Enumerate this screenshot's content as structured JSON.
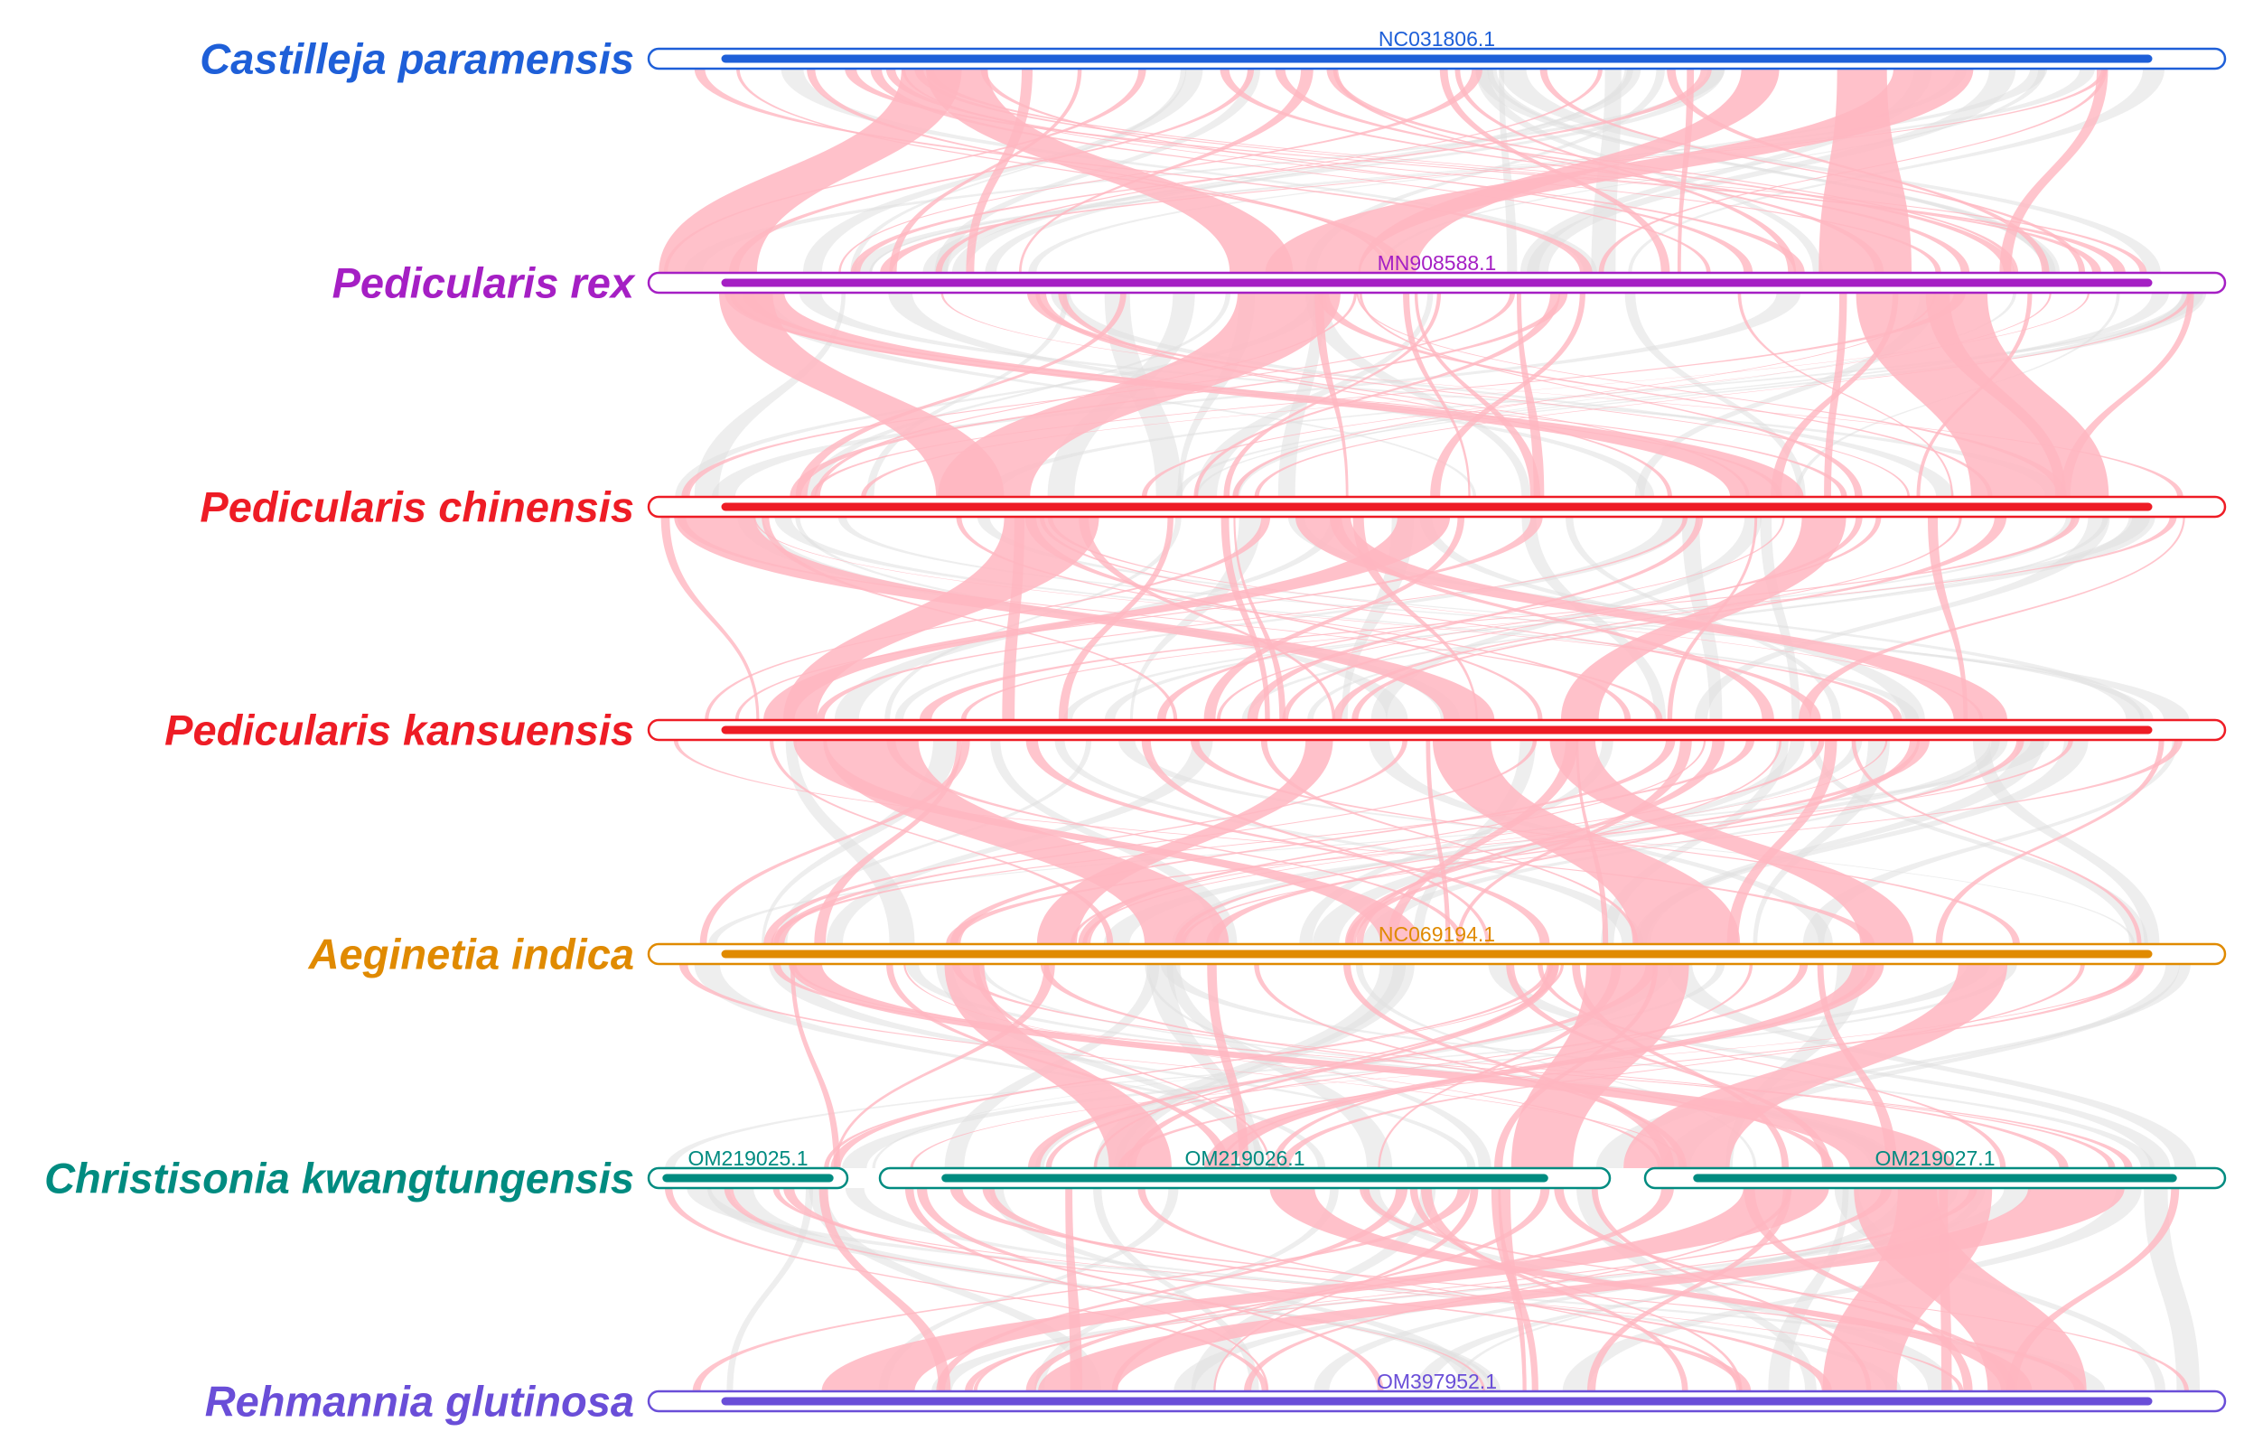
{
  "diagram": {
    "link_colors": {
      "syntenic": "#ffb6c1",
      "background": "#e0e0e0"
    },
    "tracks": [
      {
        "species": "Castilleja paramensis",
        "color": "#1e5fd8",
        "chromosomes": [
          {
            "accession": "NC031806.1"
          }
        ]
      },
      {
        "species": "Pedicularis rex",
        "color": "#a51fc4",
        "chromosomes": [
          {
            "accession": "MN908588.1"
          }
        ]
      },
      {
        "species": "Pedicularis chinensis",
        "color": "#ee1c25",
        "chromosomes": [
          {
            "accession": ""
          }
        ]
      },
      {
        "species": "Pedicularis kansuensis",
        "color": "#ee1c25",
        "chromosomes": [
          {
            "accession": ""
          }
        ]
      },
      {
        "species": "Aeginetia indica",
        "color": "#e08a00",
        "chromosomes": [
          {
            "accession": "NC069194.1"
          }
        ]
      },
      {
        "species": "Christisonia kwangtungensis",
        "color": "#008b80",
        "chromosomes": [
          {
            "accession": "OM219025.1"
          },
          {
            "accession": "OM219026.1"
          },
          {
            "accession": "OM219027.1"
          }
        ]
      },
      {
        "species": "Rehmannia glutinosa",
        "color": "#6a4ed8",
        "chromosomes": [
          {
            "accession": "OM397952.1"
          }
        ]
      }
    ]
  }
}
